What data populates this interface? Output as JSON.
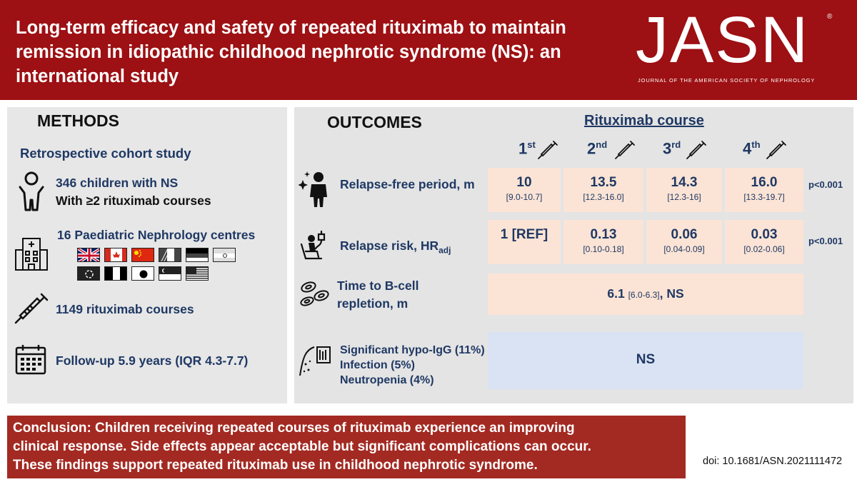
{
  "header": {
    "title": "Long-term efficacy and safety of repeated rituximab to maintain remission in idiopathic childhood nephrotic syndrome (NS): an international study",
    "logo": "JASN",
    "logo_reg": "®",
    "logo_subtitle": "JOURNAL OF THE AMERICAN SOCIETY OF NEPHROLOGY"
  },
  "methods": {
    "title": "METHODS",
    "study_type": "Retrospective cohort study",
    "children_line1": "346 children with NS",
    "children_line2": "With ≥2 rituximab courses",
    "centres": "16 Paediatric Nephrology centres",
    "flags": [
      "uk-flag",
      "canada-flag",
      "china-flag",
      "italy-flag",
      "germany-flag",
      "india-flag",
      "hong-kong-flag",
      "france-flag",
      "japan-flag",
      "singapore-flag",
      "usa-flag"
    ],
    "courses": "1149 rituximab courses",
    "followup": "Follow-up 5.9 years (IQR 4.3-7.7)"
  },
  "outcomes": {
    "title": "OUTCOMES",
    "course_title": "Rituximab course",
    "courses": [
      {
        "num": "1",
        "sup": "st"
      },
      {
        "num": "2",
        "sup": "nd"
      },
      {
        "num": "3",
        "sup": "rd"
      },
      {
        "num": "4",
        "sup": "th"
      }
    ],
    "relapse_free": {
      "label": "Relapse-free period, m",
      "values": [
        {
          "value": "10",
          "ci": "[9.0-10.7]"
        },
        {
          "value": "13.5",
          "ci": "[12.3-16.0]"
        },
        {
          "value": "14.3",
          "ci": "[12.3-16]"
        },
        {
          "value": "16.0",
          "ci": "[13.3-19.7]"
        }
      ],
      "p": "p<0.001"
    },
    "relapse_risk": {
      "label": "Relapse risk, HR",
      "label_sub": "adj",
      "values": [
        {
          "value": "1 [REF]",
          "ci": ""
        },
        {
          "value": "0.13",
          "ci": "[0.10-0.18]"
        },
        {
          "value": "0.06",
          "ci": "[0.04-0.09]"
        },
        {
          "value": "0.03",
          "ci": "[0.02-0.06]"
        }
      ],
      "p": "p<0.001"
    },
    "bcell": {
      "label_line1": "Time to B-cell",
      "label_line2": "repletion, m",
      "value": "6.1",
      "ci": "[6.0-6.3]",
      "suffix": ", NS"
    },
    "safety": {
      "line1": "Significant hypo-IgG (11%)",
      "line2": "Infection (5%)",
      "line3": "Neutropenia (4%)",
      "value": "NS"
    }
  },
  "conclusion": {
    "line1": "Conclusion: Children receiving repeated courses of rituximab experience an improving",
    "line2": "clinical response. Side effects appear acceptable but significant complications can occur.",
    "line3": "These findings support repeated rituximab use in childhood nephrotic syndrome."
  },
  "doi": "doi: 10.1681/ASN.2021111472",
  "colors": {
    "header_red": "#9d1013",
    "conclusion_red": "#a32a22",
    "navy": "#1f3864",
    "panel_grey": "#e7e7e7",
    "peach": "#fbe4d5",
    "light_blue": "#dae3f3"
  }
}
